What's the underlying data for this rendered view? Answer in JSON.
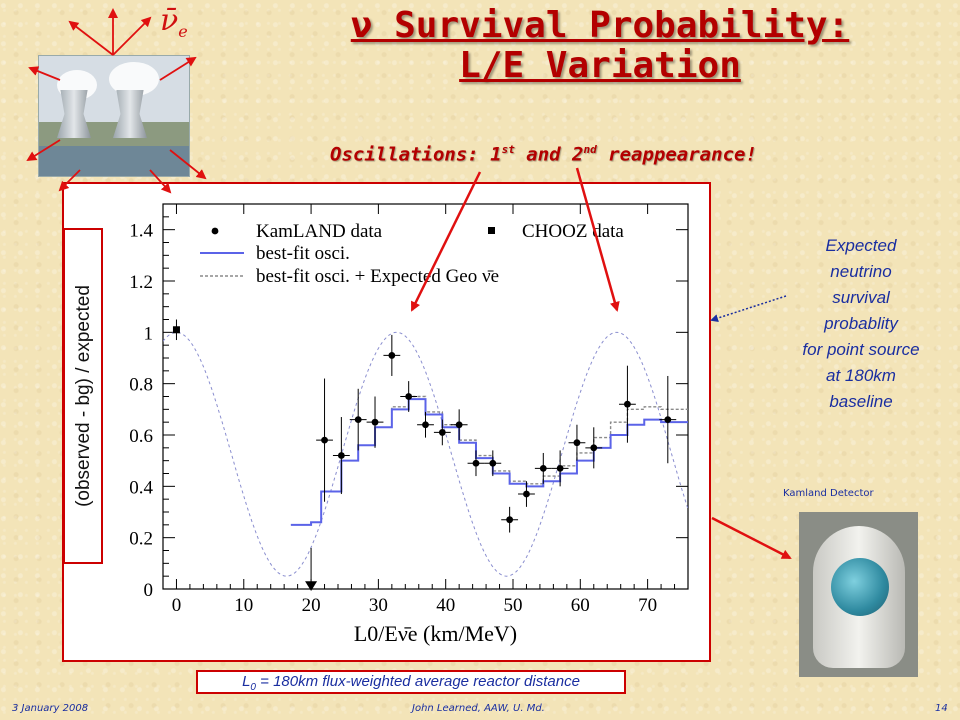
{
  "slide": {
    "title_line1": "ν Survival Probability:",
    "title_line2": "L/E Variation",
    "subtitle_prefix": "Oscillations: 1",
    "subtitle_sup1": "st",
    "subtitle_mid": " and 2",
    "subtitle_sup2": "nd",
    "subtitle_suffix": " reappearance!",
    "nubar_symbol": "ν̄",
    "nubar_sub": "e",
    "ylabel_box_text": "(observed - bg) / expected",
    "expected_lines": [
      "Expected",
      "neutrino",
      "survival",
      "probablity",
      "for point source",
      "at 180km",
      "baseline"
    ],
    "detector_label": "Kamland Detector",
    "footnote_prefix": "L",
    "footnote_sub": "0",
    "footnote_suffix": " = 180km flux-weighted average reactor distance",
    "footer_left": "3 January 2008",
    "footer_center": "John Learned, AAW, U. Md.",
    "footer_right": "14",
    "colors": {
      "accent": "#b30000",
      "note_blue": "#1a2ea0",
      "series_blue": "#5b63e8"
    }
  },
  "chart_data": {
    "type": "scatter",
    "xlabel": "L0/Eν̄e (km/MeV)",
    "xlim": [
      -2,
      76
    ],
    "ylim": [
      0,
      1.5
    ],
    "xticks": [
      0,
      10,
      20,
      30,
      40,
      50,
      60,
      70
    ],
    "yticks": [
      0,
      0.2,
      0.4,
      0.6,
      0.8,
      1,
      1.2,
      1.4
    ],
    "ytick_labels": [
      "0",
      "0.2",
      "0.4",
      "0.6",
      "0.8",
      "1",
      "1.2",
      "1.4"
    ],
    "legend": [
      {
        "label": "KamLAND data",
        "marker": "circle"
      },
      {
        "label": "CHOOZ data",
        "marker": "square"
      },
      {
        "label": "best-fit osci.",
        "style": "solid"
      },
      {
        "label": "best-fit osci. + Expected Geo ν̄e",
        "style": "dotted"
      }
    ],
    "kamland_data": [
      {
        "x": 22.0,
        "y": 0.58,
        "err": 0.24
      },
      {
        "x": 24.5,
        "y": 0.52,
        "err": 0.15
      },
      {
        "x": 27.0,
        "y": 0.66,
        "err": 0.12
      },
      {
        "x": 29.5,
        "y": 0.65,
        "err": 0.1
      },
      {
        "x": 32.0,
        "y": 0.91,
        "err": 0.08
      },
      {
        "x": 34.5,
        "y": 0.75,
        "err": 0.06
      },
      {
        "x": 37.0,
        "y": 0.64,
        "err": 0.05
      },
      {
        "x": 39.5,
        "y": 0.61,
        "err": 0.05
      },
      {
        "x": 42.0,
        "y": 0.64,
        "err": 0.06
      },
      {
        "x": 44.5,
        "y": 0.49,
        "err": 0.05
      },
      {
        "x": 47.0,
        "y": 0.49,
        "err": 0.05
      },
      {
        "x": 49.5,
        "y": 0.27,
        "err": 0.05
      },
      {
        "x": 52.0,
        "y": 0.37,
        "err": 0.05
      },
      {
        "x": 54.5,
        "y": 0.47,
        "err": 0.06
      },
      {
        "x": 57.0,
        "y": 0.47,
        "err": 0.07
      },
      {
        "x": 59.5,
        "y": 0.57,
        "err": 0.07
      },
      {
        "x": 62.0,
        "y": 0.55,
        "err": 0.08
      },
      {
        "x": 67.0,
        "y": 0.72,
        "err": 0.15
      },
      {
        "x": 73.0,
        "y": 0.66,
        "err": 0.17
      }
    ],
    "chooz_data": [
      {
        "x": 0,
        "y": 1.01,
        "err": 0.04
      }
    ],
    "upper_limit": {
      "x": 20,
      "y": 0.0
    },
    "best_fit_steps": [
      [
        17,
        0.25
      ],
      [
        20,
        0.26
      ],
      [
        21.5,
        0.38
      ],
      [
        24.5,
        0.5
      ],
      [
        27,
        0.56
      ],
      [
        29.5,
        0.63
      ],
      [
        32,
        0.7
      ],
      [
        34.5,
        0.74
      ],
      [
        37,
        0.68
      ],
      [
        39.5,
        0.63
      ],
      [
        42,
        0.57
      ],
      [
        44.5,
        0.51
      ],
      [
        47,
        0.45
      ],
      [
        49.5,
        0.41
      ],
      [
        52,
        0.4
      ],
      [
        54.5,
        0.42
      ],
      [
        57,
        0.45
      ],
      [
        59.5,
        0.5
      ],
      [
        62,
        0.55
      ],
      [
        64.5,
        0.6
      ],
      [
        67,
        0.64
      ],
      [
        69.5,
        0.66
      ],
      [
        72,
        0.65
      ],
      [
        76,
        0.65
      ]
    ],
    "geo_steps": [
      [
        17,
        0.25
      ],
      [
        20,
        0.26
      ],
      [
        21.5,
        0.38
      ],
      [
        24.5,
        0.5
      ],
      [
        27,
        0.56
      ],
      [
        29.5,
        0.63
      ],
      [
        32,
        0.71
      ],
      [
        34.5,
        0.75
      ],
      [
        37,
        0.69
      ],
      [
        39.5,
        0.64
      ],
      [
        42,
        0.58
      ],
      [
        44.5,
        0.52
      ],
      [
        47,
        0.46
      ],
      [
        49.5,
        0.42
      ],
      [
        52,
        0.41
      ],
      [
        54.5,
        0.44
      ],
      [
        57,
        0.48
      ],
      [
        59.5,
        0.53
      ],
      [
        62,
        0.59
      ],
      [
        64.5,
        0.65
      ],
      [
        67,
        0.7
      ],
      [
        69.5,
        0.71
      ],
      [
        72,
        0.7
      ],
      [
        76,
        0.69
      ]
    ],
    "survival_curve": {
      "amplitude": 0.475,
      "offset": 0.525,
      "period": 32.7,
      "x_start": -2,
      "x_end": 76
    }
  }
}
